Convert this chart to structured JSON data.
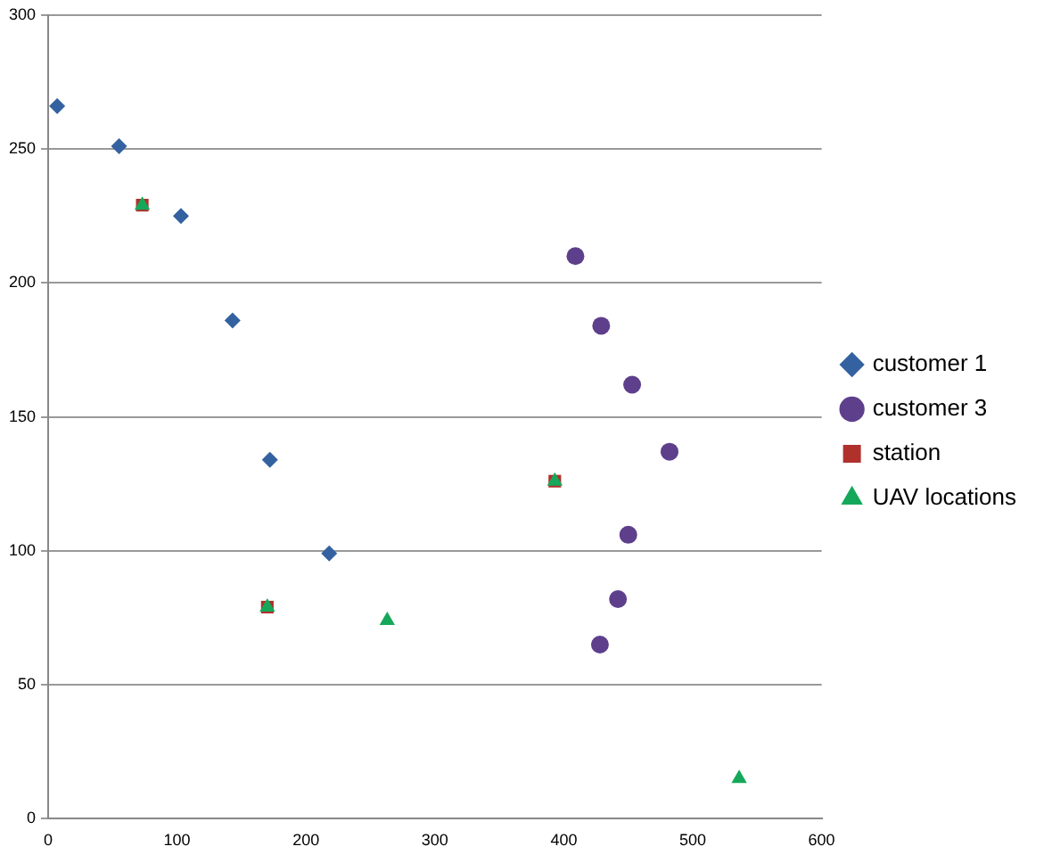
{
  "chart_data": {
    "type": "scatter",
    "xlim": [
      0,
      600
    ],
    "ylim": [
      0,
      300
    ],
    "xticks": [
      0,
      100,
      200,
      300,
      400,
      500,
      600
    ],
    "yticks": [
      0,
      50,
      100,
      150,
      200,
      250,
      300
    ],
    "grid": "y",
    "legend": "right",
    "series": [
      {
        "name": "customer 1",
        "color": "#3462a0",
        "marker": "diamond",
        "x": [
          7,
          55,
          103,
          143,
          172,
          218
        ],
        "values": [
          266,
          251,
          225,
          186,
          134,
          99
        ]
      },
      {
        "name": "customer 3",
        "color": "#5e3f8c",
        "marker": "circle",
        "x": [
          409,
          429,
          453,
          482,
          450,
          442,
          428
        ],
        "values": [
          210,
          184,
          162,
          137,
          106,
          82,
          65
        ]
      },
      {
        "name": "station",
        "color": "#b0302c",
        "marker": "square",
        "x": [
          73,
          393,
          170
        ],
        "values": [
          229,
          126,
          79
        ]
      },
      {
        "name": "UAV locations",
        "color": "#16a85a",
        "marker": "triangle",
        "x": [
          73,
          393,
          170,
          263,
          536
        ],
        "values": [
          229,
          126,
          79,
          74,
          15
        ]
      }
    ]
  }
}
